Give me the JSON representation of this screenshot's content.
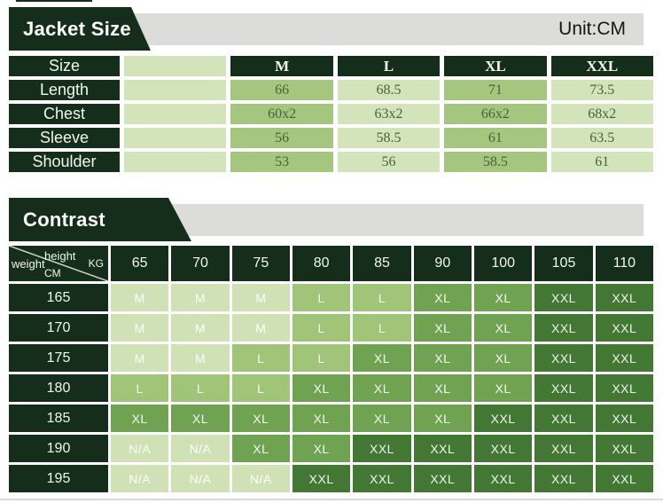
{
  "colors": {
    "dark_green": "#142e1b",
    "strip_gray": "#dcdcda",
    "light_green": "#d3e4ba",
    "medium_green": "#a5c67e",
    "cell_m": "#d0e2b5",
    "cell_l": "#a0c478",
    "cell_xl": "#6fa251",
    "cell_xxl": "#437734",
    "value_text": "#4a6239"
  },
  "size_table": {
    "title": "Jacket Size",
    "unit": "Unit:CM",
    "header": {
      "label": "Size",
      "columns": [
        "M",
        "L",
        "XL",
        "XXL"
      ]
    },
    "rows": [
      {
        "label": "Length",
        "values": [
          "66",
          "68.5",
          "71",
          "73.5"
        ]
      },
      {
        "label": "Chest",
        "values": [
          "60x2",
          "63x2",
          "66x2",
          "68x2"
        ]
      },
      {
        "label": "Sleeve",
        "values": [
          "56",
          "58.5",
          "61",
          "63.5"
        ]
      },
      {
        "label": "Shoulder",
        "values": [
          "53",
          "56",
          "58.5",
          "61"
        ]
      }
    ]
  },
  "contrast_table": {
    "title": "Contrast",
    "corner": {
      "top_label": "height",
      "top_unit": "KG",
      "bottom_label": "weight",
      "bottom_unit": "CM"
    },
    "weight_columns": [
      "65",
      "70",
      "75",
      "80",
      "85",
      "90",
      "100",
      "105",
      "110"
    ],
    "rows": [
      {
        "height": "165",
        "sizes": [
          "M",
          "M",
          "M",
          "L",
          "L",
          "XL",
          "XL",
          "XXL",
          "XXL"
        ]
      },
      {
        "height": "170",
        "sizes": [
          "M",
          "M",
          "M",
          "L",
          "L",
          "XL",
          "XL",
          "XXL",
          "XXL"
        ]
      },
      {
        "height": "175",
        "sizes": [
          "M",
          "M",
          "L",
          "L",
          "XL",
          "XL",
          "XL",
          "XXL",
          "XXL"
        ]
      },
      {
        "height": "180",
        "sizes": [
          "L",
          "L",
          "L",
          "XL",
          "XL",
          "XL",
          "XL",
          "XXL",
          "XXL"
        ]
      },
      {
        "height": "185",
        "sizes": [
          "XL",
          "XL",
          "XL",
          "XL",
          "XL",
          "XL",
          "XXL",
          "XXL",
          "XXL"
        ]
      },
      {
        "height": "190",
        "sizes": [
          "N/A",
          "N/A",
          "XL",
          "XL",
          "XXL",
          "XXL",
          "XXL",
          "XXL",
          "XXL"
        ]
      },
      {
        "height": "195",
        "sizes": [
          "N/A",
          "N/A",
          "N/A",
          "XXL",
          "XXL",
          "XXL",
          "XXL",
          "XXL",
          "XXL"
        ]
      }
    ]
  }
}
